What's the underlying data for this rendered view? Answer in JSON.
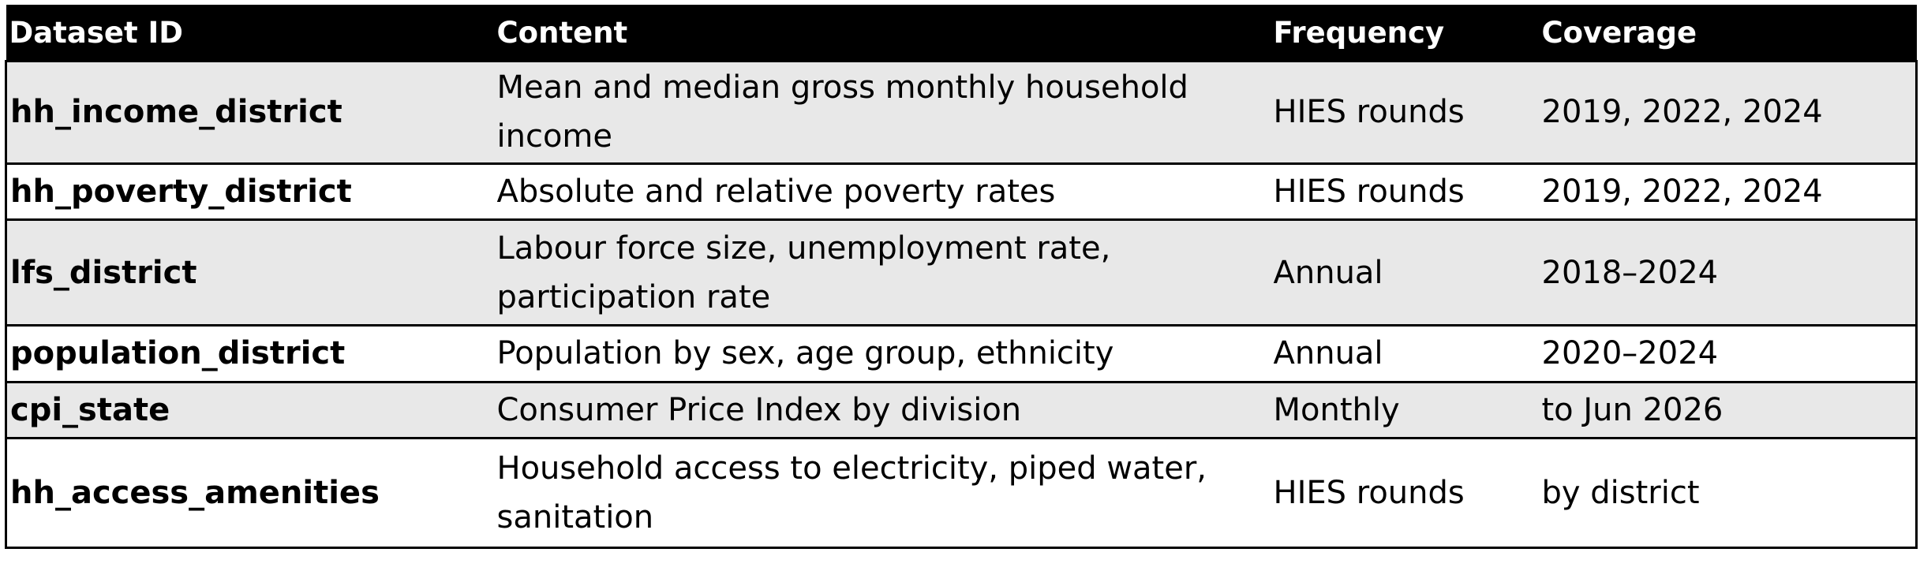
{
  "table": {
    "headers": {
      "dataset_id": "Dataset ID",
      "content": "Content",
      "frequency": "Frequency",
      "coverage": "Coverage"
    },
    "rows": [
      {
        "dataset_id": "hh_income_district",
        "content": "Mean and median gross monthly household income",
        "frequency": "HIES rounds",
        "coverage": "2019, 2022, 2024"
      },
      {
        "dataset_id": "hh_poverty_district",
        "content": "Absolute and relative poverty rates",
        "frequency": "HIES rounds",
        "coverage": "2019, 2022, 2024"
      },
      {
        "dataset_id": "lfs_district",
        "content": "Labour force size, unemployment rate, participation rate",
        "frequency": "Annual",
        "coverage": "2018–2024"
      },
      {
        "dataset_id": "population_district",
        "content": "Population by sex, age group, ethnicity",
        "frequency": "Annual",
        "coverage": "2020–2024"
      },
      {
        "dataset_id": "cpi_state",
        "content": "Consumer Price Index by division",
        "frequency": "Monthly",
        "coverage": "to Jun 2026"
      },
      {
        "dataset_id": "hh_access_amenities",
        "content": "Household access to electricity, piped water, sanitation",
        "frequency": "HIES rounds",
        "coverage": "by district"
      }
    ]
  },
  "colors": {
    "header_background": "#000000",
    "header_text": "#ffffff",
    "shaded_row": "#e8e8e8",
    "plain_row": "#ffffff",
    "border": "#000000"
  }
}
